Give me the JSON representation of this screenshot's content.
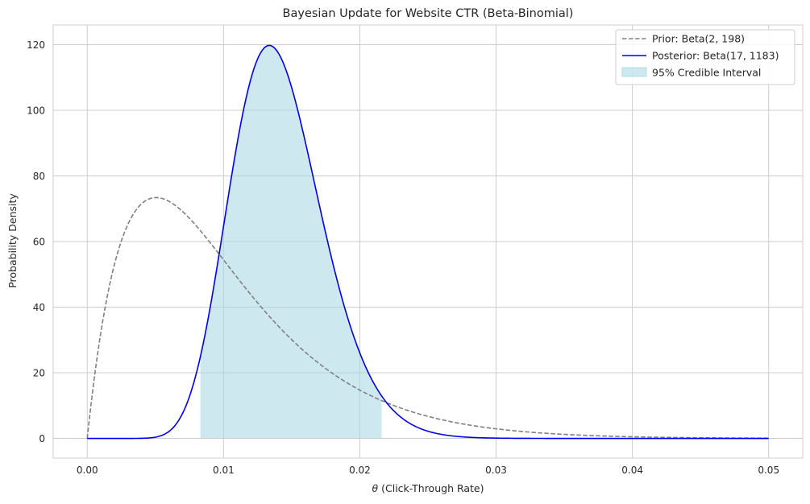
{
  "chart_data": {
    "type": "line",
    "title": "Bayesian Update for Website CTR (Beta-Binomial)",
    "xlabel_symbol": "θ",
    "xlabel": " (Click-Through Rate)",
    "ylabel": "Probability Density",
    "xlim": [
      -0.0025,
      0.0525
    ],
    "ylim": [
      -6,
      126
    ],
    "xticks": [
      0.0,
      0.01,
      0.02,
      0.03,
      0.04,
      0.05
    ],
    "xtick_labels": [
      "0.00",
      "0.01",
      "0.02",
      "0.03",
      "0.04",
      "0.05"
    ],
    "yticks": [
      0,
      20,
      40,
      60,
      80,
      100,
      120
    ],
    "ytick_labels": [
      "0",
      "20",
      "40",
      "60",
      "80",
      "100",
      "120"
    ],
    "grid": true,
    "legend_position": "top-right",
    "series": [
      {
        "name": "Prior: Beta(2, 198)",
        "style": "dashed",
        "color": "#808080",
        "alpha": 2,
        "beta": 198,
        "x": [
          0.0,
          0.001,
          0.002,
          0.003,
          0.004,
          0.005,
          0.006,
          0.007,
          0.008,
          0.009,
          0.01,
          0.012,
          0.014,
          0.016,
          0.018,
          0.02,
          0.022,
          0.025,
          0.03,
          0.035,
          0.04,
          0.045,
          0.05
        ],
        "values": [
          0,
          32.6,
          53.4,
          65.5,
          71.5,
          73.5,
          72.4,
          69.2,
          64.5,
          59.1,
          53.5,
          42.5,
          32.8,
          24.8,
          18.5,
          13.6,
          9.9,
          6.0,
          2.6,
          1.1,
          0.44,
          0.17,
          0.07
        ]
      },
      {
        "name": "Posterior: Beta(17, 1183)",
        "style": "solid",
        "color": "#0000ee",
        "alpha": 17,
        "beta": 1183,
        "x": [
          0.0,
          0.004,
          0.006,
          0.008,
          0.009,
          0.01,
          0.011,
          0.012,
          0.013,
          0.0133,
          0.014,
          0.015,
          0.016,
          0.018,
          0.02,
          0.022,
          0.025,
          0.03,
          0.05
        ],
        "values": [
          0,
          0.2,
          2.2,
          15.0,
          32.0,
          58.0,
          88.0,
          110.0,
          119.0,
          119.7,
          117.0,
          105.0,
          88.0,
          50.0,
          23.0,
          9.0,
          2.0,
          0.1,
          0.0
        ]
      }
    ],
    "credible_interval": {
      "name": "95% Credible Interval",
      "level": 0.95,
      "lower": 0.0083,
      "upper": 0.0216,
      "color": "#add8e6"
    }
  }
}
